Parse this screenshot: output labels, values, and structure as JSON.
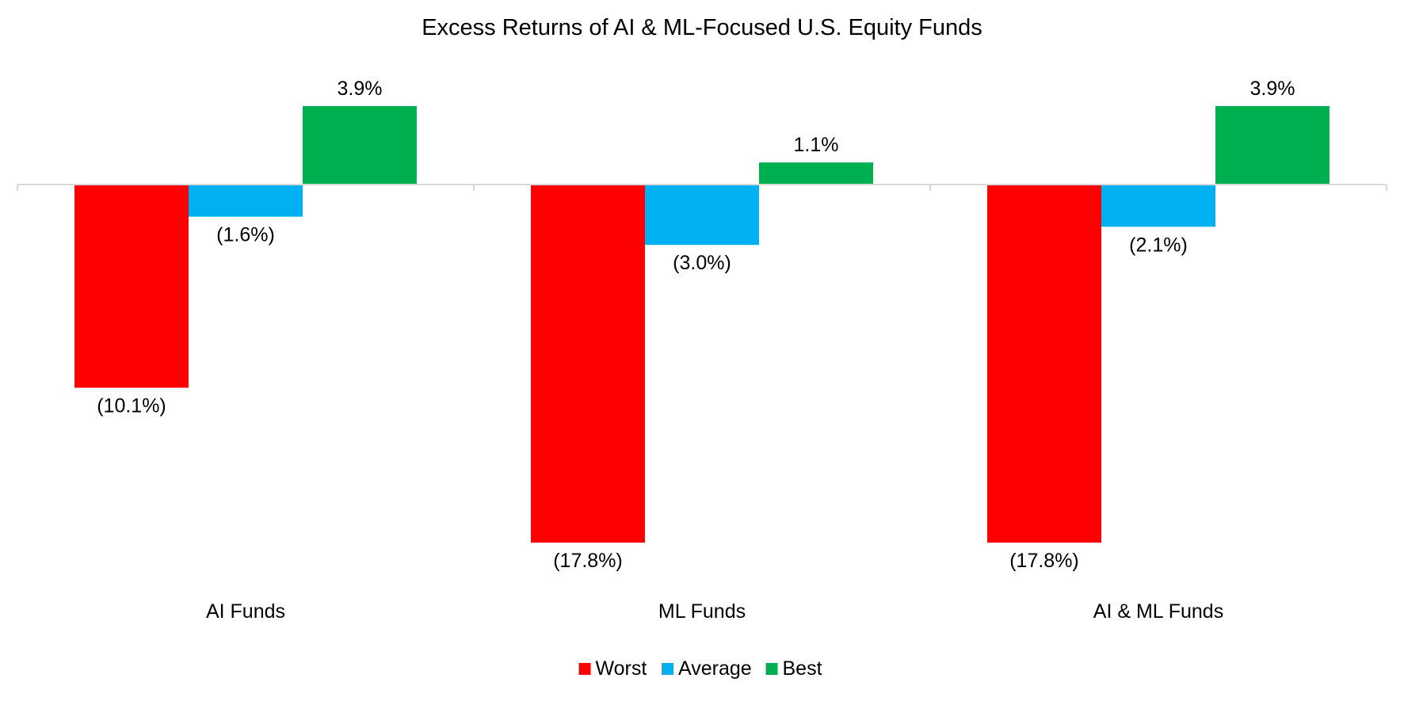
{
  "chart_data": {
    "type": "bar",
    "title": "Excess Returns of AI & ML-Focused U.S. Equity Funds",
    "xlabel": "",
    "ylabel": "",
    "unit": "%",
    "categories": [
      "AI Funds",
      "ML Funds",
      "AI & ML Funds"
    ],
    "series": [
      {
        "name": "Worst",
        "color": "#ff0000",
        "values": [
          -10.1,
          -17.8,
          -17.8
        ],
        "labels": [
          "(10.1%)",
          "(17.8%)",
          "(17.8%)"
        ]
      },
      {
        "name": "Average",
        "color": "#00b0f0",
        "values": [
          -1.6,
          -3.0,
          -2.1
        ],
        "labels": [
          "(1.6%)",
          "(3.0%)",
          "(2.1%)"
        ]
      },
      {
        "name": "Best",
        "color": "#00b050",
        "values": [
          3.9,
          1.1,
          3.9
        ],
        "labels": [
          "3.9%",
          "1.1%",
          "3.9%"
        ]
      }
    ],
    "ylim": [
      -17.8,
      3.9
    ],
    "grid": false,
    "legend": "bottom-center",
    "axis_color": "#d9d9d9"
  }
}
